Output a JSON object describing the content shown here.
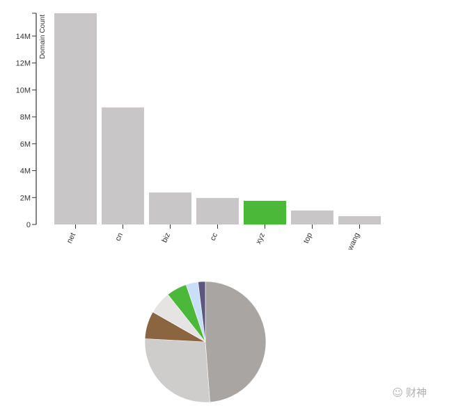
{
  "chart_data": [
    {
      "type": "bar",
      "ylabel": "Domain Count",
      "categories": [
        "net",
        "cn",
        "biz",
        "cc",
        "xyz",
        "top",
        "wang"
      ],
      "values": [
        15700000,
        8700000,
        2380000,
        1970000,
        1760000,
        1040000,
        620000
      ],
      "yticks": [
        0,
        2000000,
        4000000,
        6000000,
        8000000,
        10000000,
        12000000,
        14000000
      ],
      "ytick_labels": [
        "0",
        "2M",
        "4M",
        "6M",
        "8M",
        "10M",
        "12M",
        "14M"
      ],
      "ylim": [
        0,
        15700000
      ],
      "highlight": "xyz",
      "colors": {
        "default": "#c8c6c6",
        "highlight": "#4cb83a"
      },
      "grid": false
    },
    {
      "type": "pie",
      "categories": [
        "net",
        "cn",
        "biz",
        "cc",
        "xyz",
        "top",
        "wang"
      ],
      "values": [
        15700000,
        8700000,
        2380000,
        1970000,
        1760000,
        1040000,
        620000
      ],
      "colors": [
        "#a9a5a3",
        "#cfcdcc",
        "#8a6540",
        "#e6e4e2",
        "#4cb83a",
        "#c9def7",
        "#5d5780"
      ]
    }
  ],
  "watermark": {
    "text": "财神",
    "icon": "wechat-icon"
  }
}
